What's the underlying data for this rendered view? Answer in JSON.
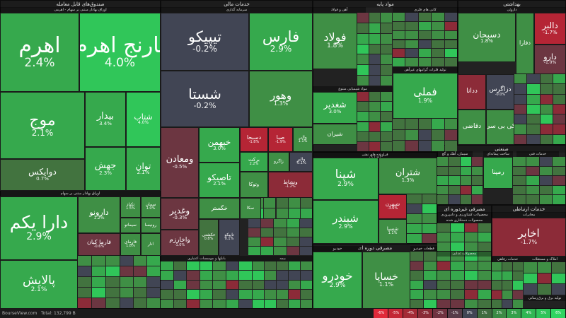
{
  "colors": {
    "g4": "#30c659",
    "g3": "#36a94d",
    "g2": "#3f8f45",
    "g1": "#42733f",
    "n0": "#414554",
    "r1": "#6c3641",
    "r2": "#8c2b38",
    "r3": "#b52535",
    "r4": "#e0293a"
  },
  "sections": [
    {
      "name": "صندوق‌های قابل معامله",
      "box": "0,0,227,437"
    },
    {
      "name": "خدمات مالی",
      "box": "227,0,215,437"
    },
    {
      "name": "مواد پایه",
      "box": "442,0,205,215"
    },
    {
      "name": "بهداشتی",
      "box": "647,0,153,205"
    },
    {
      "name": "انرژی",
      "box": "442,215,176,130"
    },
    {
      "name": "صنعتی",
      "box": "618,205,182,85"
    },
    {
      "name": "مصرفی دوره ای",
      "box": "442,345,176,92"
    },
    {
      "name": "مصرفی غیردوره ای",
      "box": "618,290,77,147"
    },
    {
      "name": "خدمات ارتباطی",
      "box": "695,290,105,147"
    }
  ],
  "subsections": [
    {
      "name": "اوراق بهادار مبتنی بر سهام - اهرمی",
      "box": "0,10,227,8"
    },
    {
      "name": "اوراق بهادار مبتنی بر سهام",
      "box": "0,270,227,8"
    },
    {
      "name": "سرمایه گذاری",
      "box": "227,10,215,8"
    },
    {
      "name": "بانکها و موسسات اعتباری",
      "box": "227,362,130,8"
    },
    {
      "name": "بیمه",
      "box": "357,362,85,8"
    },
    {
      "name": "آهن و فولاد",
      "box": "442,10,75,8"
    },
    {
      "name": "کانی های فلزی",
      "box": "555,10,92,8"
    },
    {
      "name": "تولید فلزات گرانبهای غیرآهن",
      "box": "555,95,92,8"
    },
    {
      "name": "مواد شیمیایی متنوع",
      "box": "442,122,113,8"
    },
    {
      "name": "داروئی",
      "box": "647,10,153,8"
    },
    {
      "name": "فراورده های نفتی",
      "box": "442,215,176,8"
    },
    {
      "name": "سیمان، آهک و گچ",
      "box": "618,214,50,8"
    },
    {
      "name": "خودرو",
      "box": "442,348,70,8"
    },
    {
      "name": "قطعات خودرو",
      "box": "580,348,38,8"
    },
    {
      "name": "محصولات کشاورزی و دامپروری",
      "box": "618,300,77,8"
    },
    {
      "name": "مخابرات",
      "box": "695,300,105,8"
    },
    {
      "name": "املاک و مستغلات",
      "box": "740,363,60,8"
    },
    {
      "name": "تولید برق و برق‌رسانی",
      "box": "740,418,60,8"
    },
    {
      "name": "ساخت پیمانه‌ای",
      "box": "683,214,42,8"
    },
    {
      "name": "خدمات فنی",
      "box": "730,214,60,8"
    },
    {
      "name": "محصولات دستکاری شده",
      "box": "618,308,77,8"
    },
    {
      "name": "محصولات غذایی",
      "box": "618,355,77,8"
    },
    {
      "name": "خدمات رفاهی",
      "box": "695,363,45,8"
    }
  ],
  "tiles": [
    {
      "name": "اهرم",
      "change": "2.4%",
      "color": "g3",
      "box": "0,18,112,112",
      "fs": 30
    },
    {
      "name": "نارنج اهرم",
      "change": "4.0%",
      "color": "g4",
      "box": "112,18,115,112",
      "fs": 30
    },
    {
      "name": "موج",
      "change": "2.1%",
      "color": "g3",
      "box": "0,130,120,95",
      "fs": 22
    },
    {
      "name": "بیدار",
      "change": "3.4%",
      "color": "g3",
      "box": "120,130,58,78",
      "fs": 13
    },
    {
      "name": "شتاب",
      "change": "4.0%",
      "color": "g4",
      "box": "178,130,49,78",
      "fs": 11
    },
    {
      "name": "جهش",
      "change": "2.3%",
      "color": "g3",
      "box": "120,208,58,62",
      "fs": 13
    },
    {
      "name": "توان",
      "change": "2.1%",
      "color": "g3",
      "box": "178,208,49,62",
      "fs": 12
    },
    {
      "name": "دوایکس",
      "change": "0.7%",
      "color": "g1",
      "box": "0,225,120,45",
      "fs": 12
    },
    {
      "name": "دارا یکم",
      "change": "2.9%",
      "color": "g3",
      "box": "0,278,110,90",
      "fs": 25
    },
    {
      "name": "دارونو",
      "change": "1.2%",
      "color": "g2",
      "box": "110,278,60,52",
      "fs": 11
    },
    {
      "name": "تکپاد",
      "change": "1.5%",
      "color": "g2",
      "box": "170,278,29,30",
      "fs": 6
    },
    {
      "name": "سمان",
      "change": "1.0%",
      "color": "g2",
      "box": "199,278,28,30",
      "fs": 6
    },
    {
      "name": "سیماتو",
      "change": "",
      "color": "g2",
      "box": "170,308,29,22",
      "fs": 6
    },
    {
      "name": "رونیسا",
      "change": "",
      "color": "g2",
      "box": "199,308,28,22",
      "fs": 6
    },
    {
      "name": "فارما کیان",
      "change": "-0.6%",
      "color": "r1",
      "box": "110,330,60,32",
      "fs": 8
    },
    {
      "name": "فارمای",
      "change": "1.8%",
      "color": "g2",
      "box": "170,330,29,32",
      "fs": 6
    },
    {
      "name": "انار",
      "change": "",
      "color": "g2",
      "box": "199,330,28,32",
      "fs": 6
    },
    {
      "name": "پالایش",
      "change": "2.1%",
      "color": "g3",
      "box": "0,368,110,69",
      "fs": 17
    },
    {
      "name": "تیپیکو",
      "change": "-0.2%",
      "color": "n0",
      "box": "227,18,125,82",
      "fs": 21
    },
    {
      "name": "فارس",
      "change": "2.9%",
      "color": "g3",
      "box": "352,18,90,82",
      "fs": 21
    },
    {
      "name": "شستا",
      "change": "-0.2%",
      "color": "n0",
      "box": "227,100,125,80",
      "fs": 20
    },
    {
      "name": "وهور",
      "change": "1.3%",
      "color": "g2",
      "box": "352,100,90,80",
      "fs": 15
    },
    {
      "name": "ومعادن",
      "change": "-0.5%",
      "color": "r1",
      "box": "227,180,54,100",
      "fs": 13
    },
    {
      "name": "خبهمن",
      "change": "3.0%",
      "color": "g3",
      "box": "281,180,58,50",
      "fs": 12
    },
    {
      "name": "دسبحا",
      "change": "-1.8%",
      "color": "r3",
      "box": "339,180,40,35",
      "fs": 8
    },
    {
      "name": "صبا",
      "change": "-1.9%",
      "color": "r3",
      "box": "379,180,35,35",
      "fs": 8
    },
    {
      "name": "والی",
      "change": "1.1%",
      "color": "g2",
      "box": "414,180,28,35",
      "fs": 6
    },
    {
      "name": "تاصیکو",
      "change": "2.1%",
      "color": "g3",
      "box": "281,230,58,50",
      "fs": 12
    },
    {
      "name": "برکت",
      "change": "2.2%",
      "color": "g3",
      "box": "339,215,40,28",
      "fs": 7
    },
    {
      "name": "زاگرو",
      "change": "",
      "color": "g2",
      "box": "379,215,30,28",
      "fs": 6
    },
    {
      "name": "والبر",
      "change": "-0.1%",
      "color": "n0",
      "box": "409,215,33,28",
      "fs": 6
    },
    {
      "name": "وتوکا",
      "change": "",
      "color": "g2",
      "box": "339,243,40,37",
      "fs": 7
    },
    {
      "name": "ونشاط",
      "change": "-1.2%",
      "color": "r2",
      "box": "379,243,63,37",
      "fs": 7
    },
    {
      "name": "وغدیر",
      "change": "-0.3%",
      "color": "r1",
      "box": "227,280,54,45",
      "fs": 12
    },
    {
      "name": "خگستر",
      "change": "",
      "color": "g2",
      "box": "281,280,58,30",
      "fs": 8
    },
    {
      "name": "سکا",
      "change": "",
      "color": "g2",
      "box": "339,280,30,30",
      "fs": 6
    },
    {
      "name": "واخارزم",
      "change": "-1.0%",
      "color": "r1",
      "box": "227,325,54,37",
      "fs": 9
    },
    {
      "name": "حکشتی",
      "change": "0.8%",
      "color": "g1",
      "box": "281,310,28,52",
      "fs": 6
    },
    {
      "name": "تاپیکو",
      "change": "0.1%",
      "color": "n0",
      "box": "309,310,30,52",
      "fs": 6
    },
    {
      "name": "فولاد",
      "change": "1.8%",
      "color": "g2",
      "box": "442,18,63,80",
      "fs": 16
    },
    {
      "name": "فملی",
      "change": "1.9%",
      "color": "g3",
      "box": "555,103,92,65",
      "fs": 15
    },
    {
      "name": "شغدیر",
      "change": "3.0%",
      "color": "g3",
      "box": "442,130,63,45",
      "fs": 12
    },
    {
      "name": "شیران",
      "change": "",
      "color": "g2",
      "box": "442,175,63,30",
      "fs": 8
    },
    {
      "name": "دسبحان",
      "change": "1.8%",
      "color": "g2",
      "box": "647,18,82,70",
      "fs": 12
    },
    {
      "name": "دالبر",
      "change": "-1.7%",
      "color": "r3",
      "box": "755,18,45,45",
      "fs": 12
    },
    {
      "name": "دارو",
      "change": "-1.0%",
      "color": "r1",
      "box": "755,63,45,42",
      "fs": 11
    },
    {
      "name": "دفارا",
      "change": "",
      "color": "g2",
      "box": "729,18,26,87",
      "fs": 8
    },
    {
      "name": "ددانا",
      "change": "",
      "color": "r2",
      "box": "647,105,40,50",
      "fs": 9
    },
    {
      "name": "دزاگرس",
      "change": "-0.0%",
      "color": "n0",
      "box": "687,105,40,50",
      "fs": 9
    },
    {
      "name": "دقاضی",
      "change": "",
      "color": "g2",
      "box": "647,155,40,50",
      "fs": 9
    },
    {
      "name": "کی بی سی",
      "change": "",
      "color": "g2",
      "box": "687,155,40,50",
      "fs": 9
    },
    {
      "name": "شپنا",
      "change": "2.9%",
      "color": "g3",
      "box": "442,223,93,60",
      "fs": 17
    },
    {
      "name": "شتران",
      "change": "1.3%",
      "color": "g2",
      "box": "535,223,83,52",
      "fs": 13
    },
    {
      "name": "شبندر",
      "change": "2.9%",
      "color": "g3",
      "box": "442,283,93,62",
      "fs": 15
    },
    {
      "name": "شبهرن",
      "change": "-3.6%",
      "color": "r3",
      "box": "535,275,40,35",
      "fs": 7
    },
    {
      "name": "شسپا",
      "change": "1.1%",
      "color": "g2",
      "box": "535,310,40,35",
      "fs": 7
    },
    {
      "name": "خودرو",
      "change": "2.9%",
      "color": "g3",
      "box": "442,356,70,81",
      "fs": 17
    },
    {
      "name": "خساپا",
      "change": "1.1%",
      "color": "g2",
      "box": "512,356,68,81",
      "fs": 14
    },
    {
      "name": "رمپنا",
      "change": "",
      "color": "g3",
      "box": "683,222,42,45",
      "fs": 9
    },
    {
      "name": "اخابر",
      "change": "-1.7%",
      "color": "r2",
      "box": "695,308,105,55",
      "fs": 15
    }
  ],
  "footer": {
    "brand": "BourseView.com",
    "total": "Total: 132,799 B",
    "legend": [
      {
        "label": "-6%",
        "color": "#e0293a"
      },
      {
        "label": "-5%",
        "color": "#c42736"
      },
      {
        "label": "-4%",
        "color": "#a42a36"
      },
      {
        "label": "-3%",
        "color": "#8a2b37"
      },
      {
        "label": "-2%",
        "color": "#6f3240"
      },
      {
        "label": "-1%",
        "color": "#573b48"
      },
      {
        "label": "0%",
        "color": "#414554"
      },
      {
        "label": "1%",
        "color": "#3f6b3f"
      },
      {
        "label": "2%",
        "color": "#3b8a45"
      },
      {
        "label": "3%",
        "color": "#35a04b"
      },
      {
        "label": "4%",
        "color": "#30b653"
      },
      {
        "label": "5%",
        "color": "#2fc45a"
      },
      {
        "label": "6%",
        "color": "#30d461"
      }
    ]
  }
}
